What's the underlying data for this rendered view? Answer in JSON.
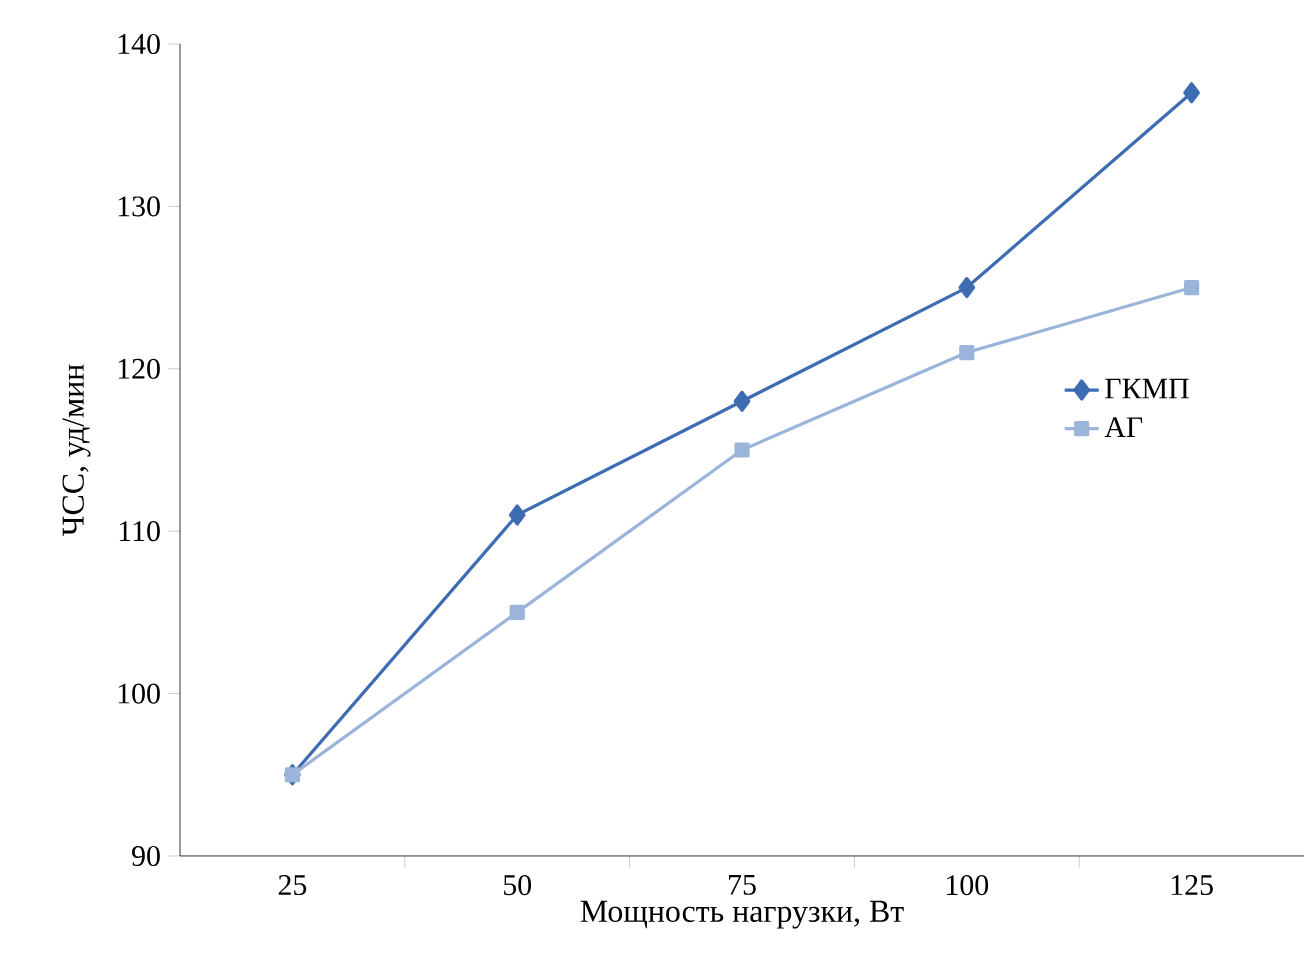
{
  "chart_data": {
    "type": "line",
    "xlabel": "Мощность нагрузки, Вт",
    "ylabel": "ЧСС, уд/мин",
    "categories": [
      "25",
      "50",
      "75",
      "100",
      "125"
    ],
    "series": [
      {
        "name": "ГКМП",
        "color": "#3d6cb3",
        "marker": "diamond",
        "values": [
          95,
          111,
          118,
          125,
          137
        ]
      },
      {
        "name": "АГ",
        "color": "#9bb4da",
        "marker": "square",
        "values": [
          95,
          105,
          115,
          121,
          125
        ]
      }
    ],
    "ylim": [
      90,
      140
    ],
    "yticks": [
      90,
      100,
      110,
      120,
      130,
      140
    ],
    "grid": false,
    "legend": "right",
    "line_style": "solid"
  }
}
